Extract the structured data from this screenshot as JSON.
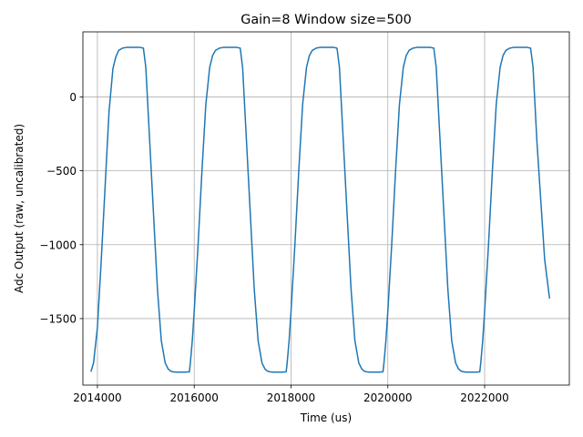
{
  "chart_data": {
    "type": "line",
    "title": "Gain=8 Window size=500",
    "xlabel": "Time (us)",
    "ylabel": "Adc Output (raw, uncalibrated)",
    "xlim": [
      2013700,
      2023750
    ],
    "ylim": [
      -1950,
      440
    ],
    "grid": true,
    "color": "#1f77b4",
    "xticks": [
      2014000,
      2016000,
      2018000,
      2020000,
      2022000
    ],
    "xtick_labels": [
      "2014000",
      "2016000",
      "2018000",
      "2020000",
      "2022000"
    ],
    "yticks": [
      0,
      -500,
      -1000,
      -1500
    ],
    "ytick_labels": [
      "0",
      "−500",
      "−1000",
      "−1500"
    ],
    "series": [
      {
        "name": "adc",
        "x": [
          2013870,
          2013920,
          2014000,
          2014080,
          2014160,
          2014240,
          2014320,
          2014380,
          2014440,
          2014520,
          2014600,
          2014700,
          2014800,
          2014880,
          2014950,
          2015000,
          2015080,
          2015160,
          2015240,
          2015320,
          2015400,
          2015460,
          2015510,
          2015560,
          2015620,
          2015700,
          2015820,
          2015900,
          2015920,
          2015960,
          2016000,
          2016080,
          2016160,
          2016240,
          2016320,
          2016380,
          2016440,
          2016520,
          2016600,
          2016700,
          2016800,
          2016880,
          2016950,
          2017000,
          2017080,
          2017160,
          2017240,
          2017320,
          2017400,
          2017460,
          2017510,
          2017560,
          2017620,
          2017700,
          2017820,
          2017900,
          2017920,
          2017960,
          2018000,
          2018080,
          2018160,
          2018240,
          2018320,
          2018380,
          2018440,
          2018520,
          2018600,
          2018700,
          2018800,
          2018880,
          2018950,
          2019000,
          2019080,
          2019160,
          2019240,
          2019320,
          2019400,
          2019460,
          2019510,
          2019560,
          2019620,
          2019700,
          2019820,
          2019900,
          2019920,
          2019960,
          2020000,
          2020080,
          2020160,
          2020240,
          2020320,
          2020380,
          2020440,
          2020520,
          2020600,
          2020700,
          2020800,
          2020880,
          2020950,
          2021000,
          2021080,
          2021160,
          2021240,
          2021320,
          2021400,
          2021460,
          2021510,
          2021560,
          2021620,
          2021700,
          2021820,
          2021900,
          2021920,
          2021960,
          2022000,
          2022080,
          2022160,
          2022240,
          2022320,
          2022380,
          2022440,
          2022520,
          2022600,
          2022700,
          2022800,
          2022880,
          2022950,
          2023000,
          2023080,
          2023160,
          2023240,
          2023340
        ],
        "values": [
          -1855,
          -1800,
          -1560,
          -1100,
          -600,
          -100,
          190,
          270,
          315,
          330,
          335,
          335,
          335,
          335,
          330,
          200,
          -300,
          -800,
          -1300,
          -1650,
          -1800,
          -1840,
          -1855,
          -1860,
          -1862,
          -1862,
          -1862,
          -1860,
          -1800,
          -1650,
          -1450,
          -1000,
          -500,
          -50,
          200,
          280,
          315,
          330,
          335,
          335,
          335,
          335,
          330,
          200,
          -300,
          -800,
          -1300,
          -1650,
          -1800,
          -1840,
          -1855,
          -1860,
          -1862,
          -1862,
          -1862,
          -1860,
          -1800,
          -1650,
          -1450,
          -1000,
          -500,
          -50,
          200,
          280,
          315,
          330,
          335,
          335,
          335,
          335,
          330,
          200,
          -300,
          -800,
          -1300,
          -1650,
          -1800,
          -1840,
          -1855,
          -1860,
          -1862,
          -1862,
          -1862,
          -1860,
          -1800,
          -1650,
          -1450,
          -1000,
          -500,
          -50,
          200,
          280,
          315,
          330,
          335,
          335,
          335,
          335,
          330,
          200,
          -300,
          -800,
          -1300,
          -1650,
          -1800,
          -1840,
          -1855,
          -1860,
          -1862,
          -1862,
          -1862,
          -1860,
          -1800,
          -1650,
          -1450,
          -1000,
          -500,
          -50,
          200,
          280,
          315,
          330,
          335,
          335,
          335,
          335,
          330,
          200,
          -300,
          -700,
          -1100,
          -1360
        ]
      }
    ]
  }
}
